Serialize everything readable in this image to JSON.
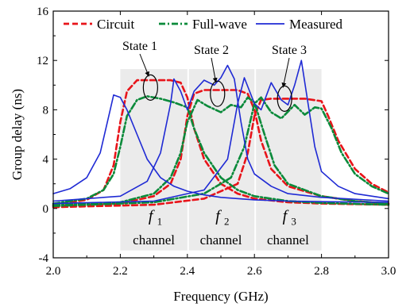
{
  "chart_data": {
    "type": "line",
    "xlabel": "Frequency (GHz)",
    "ylabel": "Group delay (ns)",
    "xlim": [
      2.0,
      3.0
    ],
    "ylim": [
      -4,
      16
    ],
    "xticks": [
      "2.0",
      "2.2",
      "2.4",
      "2.6",
      "2.8",
      "3.0"
    ],
    "yticks": [
      "-4",
      "0",
      "4",
      "8",
      "12",
      "16"
    ],
    "legend_placement": "top",
    "grid": false,
    "channels": [
      {
        "label_f": "f",
        "label_sub": "1",
        "label_word": "channel",
        "x_range": [
          2.2,
          2.4
        ]
      },
      {
        "label_f": "f",
        "label_sub": "2",
        "label_word": "channel",
        "x_range": [
          2.4,
          2.6
        ]
      },
      {
        "label_f": "f",
        "label_sub": "3",
        "label_word": "channel",
        "x_range": [
          2.6,
          2.8
        ]
      }
    ],
    "states": [
      {
        "label": "State 1",
        "x": 2.29,
        "y": 9.8
      },
      {
        "label": "State 2",
        "x": 2.49,
        "y": 9.3
      },
      {
        "label": "State 3",
        "x": 2.69,
        "y": 8.9
      }
    ],
    "series": [
      {
        "name": "Circuit",
        "color": "#e8141a",
        "style": "dashed",
        "curves": [
          [
            [
              2.0,
              0.3
            ],
            [
              2.1,
              0.7
            ],
            [
              2.15,
              1.5
            ],
            [
              2.18,
              3.5
            ],
            [
              2.2,
              7.0
            ],
            [
              2.22,
              9.5
            ],
            [
              2.25,
              10.4
            ],
            [
              2.3,
              10.4
            ],
            [
              2.35,
              10.4
            ],
            [
              2.38,
              10.2
            ],
            [
              2.4,
              9.0
            ],
            [
              2.42,
              6.5
            ],
            [
              2.45,
              4.0
            ],
            [
              2.5,
              2.0
            ],
            [
              2.55,
              1.2
            ],
            [
              2.6,
              0.8
            ],
            [
              2.7,
              0.5
            ],
            [
              2.8,
              0.4
            ],
            [
              3.0,
              0.3
            ]
          ],
          [
            [
              2.0,
              0.2
            ],
            [
              2.2,
              0.4
            ],
            [
              2.3,
              1.0
            ],
            [
              2.35,
              2.0
            ],
            [
              2.38,
              4.0
            ],
            [
              2.4,
              7.5
            ],
            [
              2.42,
              9.3
            ],
            [
              2.45,
              9.6
            ],
            [
              2.5,
              9.6
            ],
            [
              2.55,
              9.6
            ],
            [
              2.58,
              9.3
            ],
            [
              2.6,
              8.0
            ],
            [
              2.62,
              5.5
            ],
            [
              2.65,
              3.2
            ],
            [
              2.7,
              1.8
            ],
            [
              2.8,
              1.0
            ],
            [
              2.9,
              0.6
            ],
            [
              3.0,
              0.4
            ]
          ],
          [
            [
              2.0,
              0.1
            ],
            [
              2.3,
              0.3
            ],
            [
              2.45,
              0.8
            ],
            [
              2.55,
              2.0
            ],
            [
              2.58,
              4.5
            ],
            [
              2.6,
              7.5
            ],
            [
              2.62,
              8.8
            ],
            [
              2.65,
              8.9
            ],
            [
              2.7,
              8.9
            ],
            [
              2.75,
              8.9
            ],
            [
              2.8,
              8.7
            ],
            [
              2.82,
              7.5
            ],
            [
              2.85,
              5.5
            ],
            [
              2.9,
              3.2
            ],
            [
              2.95,
              2.0
            ],
            [
              3.0,
              1.3
            ]
          ]
        ]
      },
      {
        "name": "Full-wave",
        "color": "#0a8a3a",
        "style": "dashdot",
        "curves": [
          [
            [
              2.0,
              0.4
            ],
            [
              2.1,
              0.8
            ],
            [
              2.15,
              1.5
            ],
            [
              2.18,
              2.8
            ],
            [
              2.2,
              5.0
            ],
            [
              2.22,
              7.5
            ],
            [
              2.25,
              8.8
            ],
            [
              2.28,
              9.1
            ],
            [
              2.32,
              8.9
            ],
            [
              2.36,
              8.6
            ],
            [
              2.4,
              8.2
            ],
            [
              2.42,
              6.5
            ],
            [
              2.45,
              4.5
            ],
            [
              2.5,
              2.5
            ],
            [
              2.55,
              1.5
            ],
            [
              2.6,
              1.0
            ],
            [
              2.7,
              0.6
            ],
            [
              2.8,
              0.45
            ],
            [
              3.0,
              0.3
            ]
          ],
          [
            [
              2.0,
              0.3
            ],
            [
              2.2,
              0.5
            ],
            [
              2.3,
              1.2
            ],
            [
              2.35,
              2.5
            ],
            [
              2.38,
              4.5
            ],
            [
              2.4,
              7.0
            ],
            [
              2.43,
              8.8
            ],
            [
              2.46,
              8.3
            ],
            [
              2.5,
              7.8
            ],
            [
              2.53,
              8.4
            ],
            [
              2.56,
              8.2
            ],
            [
              2.58,
              9.0
            ],
            [
              2.6,
              8.6
            ],
            [
              2.63,
              6.0
            ],
            [
              2.66,
              3.5
            ],
            [
              2.7,
              2.0
            ],
            [
              2.8,
              1.0
            ],
            [
              2.9,
              0.6
            ],
            [
              3.0,
              0.4
            ]
          ],
          [
            [
              2.0,
              0.2
            ],
            [
              2.3,
              0.5
            ],
            [
              2.45,
              1.2
            ],
            [
              2.53,
              2.5
            ],
            [
              2.57,
              5.0
            ],
            [
              2.6,
              8.5
            ],
            [
              2.62,
              9.0
            ],
            [
              2.65,
              7.8
            ],
            [
              2.68,
              7.3
            ],
            [
              2.72,
              8.4
            ],
            [
              2.75,
              7.6
            ],
            [
              2.78,
              8.2
            ],
            [
              2.8,
              8.1
            ],
            [
              2.83,
              6.5
            ],
            [
              2.86,
              4.5
            ],
            [
              2.9,
              2.8
            ],
            [
              2.95,
              1.8
            ],
            [
              3.0,
              1.2
            ]
          ]
        ]
      },
      {
        "name": "Measured",
        "color": "#1f2ad4",
        "style": "solid",
        "curves": [
          [
            [
              2.0,
              1.2
            ],
            [
              2.05,
              1.6
            ],
            [
              2.1,
              2.5
            ],
            [
              2.14,
              4.5
            ],
            [
              2.17,
              8.0
            ],
            [
              2.18,
              9.2
            ],
            [
              2.2,
              9.0
            ],
            [
              2.22,
              8.0
            ],
            [
              2.25,
              6.0
            ],
            [
              2.28,
              4.0
            ],
            [
              2.32,
              2.5
            ],
            [
              2.36,
              1.8
            ],
            [
              2.4,
              1.4
            ],
            [
              2.45,
              1.1
            ],
            [
              2.5,
              0.9
            ],
            [
              2.6,
              0.7
            ],
            [
              2.7,
              0.6
            ],
            [
              2.8,
              0.55
            ],
            [
              3.0,
              0.5
            ]
          ],
          [
            [
              2.0,
              0.6
            ],
            [
              2.2,
              1.0
            ],
            [
              2.28,
              2.2
            ],
            [
              2.32,
              4.5
            ],
            [
              2.35,
              8.5
            ],
            [
              2.36,
              10.5
            ],
            [
              2.38,
              9.5
            ],
            [
              2.4,
              8.0
            ],
            [
              2.42,
              9.5
            ],
            [
              2.45,
              10.4
            ],
            [
              2.48,
              10.0
            ],
            [
              2.5,
              10.6
            ],
            [
              2.52,
              11.6
            ],
            [
              2.54,
              10.5
            ],
            [
              2.56,
              7.0
            ],
            [
              2.58,
              4.0
            ],
            [
              2.6,
              2.8
            ],
            [
              2.65,
              1.8
            ],
            [
              2.7,
              1.2
            ],
            [
              2.8,
              0.9
            ],
            [
              3.0,
              0.6
            ]
          ],
          [
            [
              2.0,
              0.4
            ],
            [
              2.3,
              0.6
            ],
            [
              2.45,
              1.5
            ],
            [
              2.52,
              4.0
            ],
            [
              2.55,
              8.5
            ],
            [
              2.57,
              10.6
            ],
            [
              2.6,
              8.5
            ],
            [
              2.62,
              8.0
            ],
            [
              2.65,
              10.2
            ],
            [
              2.68,
              8.8
            ],
            [
              2.7,
              8.4
            ],
            [
              2.72,
              10.0
            ],
            [
              2.74,
              12.0
            ],
            [
              2.76,
              8.5
            ],
            [
              2.78,
              5.0
            ],
            [
              2.8,
              3.0
            ],
            [
              2.85,
              1.8
            ],
            [
              2.9,
              1.2
            ],
            [
              3.0,
              0.8
            ]
          ]
        ]
      }
    ]
  }
}
